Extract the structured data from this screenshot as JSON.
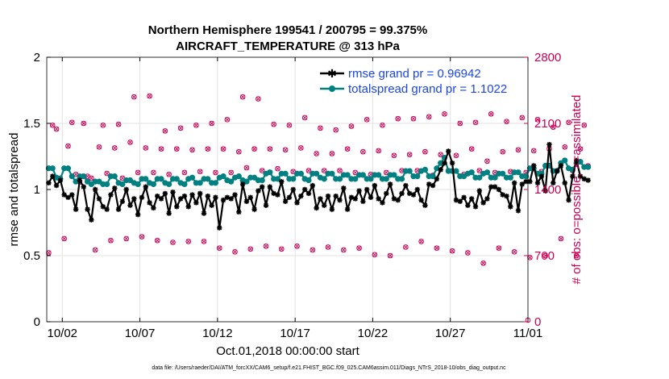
{
  "chart_data": {
    "type": "line",
    "title_line1": "Northern Hemisphere 199541 / 200795 = 99.375%",
    "title_line2": "AIRCRAFT_TEMPERATURE @ 313 hPa",
    "xlabel": "Oct.01,2018 00:00:00 start",
    "ylabel_left": "rmse and totalspread",
    "ylabel_right": "# of obs: o=possible; ×=assimilated",
    "xlim": [
      0,
      31
    ],
    "ylim_left": [
      0,
      2
    ],
    "ylim_right": [
      0,
      2800
    ],
    "x_ticks": [
      1,
      6,
      11,
      16,
      21,
      26,
      31
    ],
    "x_tick_labels": [
      "10/02",
      "10/07",
      "10/12",
      "10/17",
      "10/22",
      "10/27",
      "11/01"
    ],
    "y_ticks_left": [
      0,
      0.5,
      1,
      1.5,
      2
    ],
    "y_tick_labels_left": [
      "0",
      "0.5",
      "1",
      "1.5",
      "2"
    ],
    "y_ticks_right": [
      0,
      700,
      1400,
      2100,
      2800
    ],
    "y_tick_labels_right": [
      "0",
      "700",
      "1400",
      "2100",
      "2800"
    ],
    "x_step_days": 0.25,
    "x_start": 0.125,
    "series": [
      {
        "name": "rmse grand pr = 0.96942",
        "axis": "left",
        "color": "#000000",
        "values": [
          1.05,
          1.1,
          1.03,
          1.07,
          0.96,
          0.94,
          0.96,
          0.85,
          1.07,
          1.02,
          0.85,
          0.77,
          1.0,
          0.93,
          0.87,
          0.85,
          0.96,
          1.01,
          0.85,
          0.91,
          1.0,
          0.88,
          0.93,
          0.81,
          0.94,
          1.02,
          0.9,
          0.86,
          0.95,
          0.93,
          0.97,
          0.82,
          0.98,
          0.87,
          0.93,
          0.95,
          0.87,
          0.96,
          0.9,
          0.97,
          0.82,
          0.95,
          0.88,
          0.94,
          0.71,
          0.92,
          0.94,
          0.93,
          0.96,
          0.83,
          1.04,
          0.91,
          0.94,
          0.85,
          0.99,
          1.02,
          0.88,
          1.02,
          0.97,
          0.96,
          1.06,
          0.91,
          0.94,
          1.0,
          0.9,
          0.95,
          1.0,
          0.97,
          1.03,
          0.86,
          0.93,
          0.88,
          0.95,
          0.85,
          0.95,
          0.92,
          1.01,
          0.85,
          0.94,
          0.93,
          0.99,
          0.91,
          1.0,
          0.94,
          1.03,
          0.93,
          0.9,
          0.97,
          1.04,
          0.93,
          0.92,
          0.97,
          1.03,
          0.97,
          0.96,
          1.0,
          0.92,
          0.88,
          1.04,
          1.03,
          1.08,
          1.15,
          1.2,
          1.29,
          1.2,
          0.92,
          0.91,
          0.94,
          0.88,
          0.93,
          0.87,
          0.99,
          0.9,
          0.93,
          1.02,
          1.02,
          1.0,
          0.96,
          0.95,
          0.87,
          1.05,
          0.84,
          1.04,
          1.06,
          1.06,
          1.18,
          1.05,
          1.1,
          0.99,
          1.34,
          1.05,
          1.14,
          1.18,
          1.05,
          0.92,
          1.1,
          1.22,
          1.1,
          1.08,
          1.07
        ]
      },
      {
        "name": "totalspread grand pr = 1.1022",
        "axis": "left",
        "color": "#008080",
        "values": [
          1.16,
          1.16,
          1.09,
          1.08,
          1.16,
          1.16,
          1.1,
          1.06,
          1.1,
          1.1,
          1.06,
          1.04,
          1.06,
          1.06,
          1.04,
          1.04,
          1.1,
          1.1,
          1.05,
          1.04,
          1.07,
          1.07,
          1.05,
          1.04,
          1.08,
          1.08,
          1.05,
          1.04,
          1.08,
          1.08,
          1.05,
          1.04,
          1.08,
          1.08,
          1.05,
          1.04,
          1.08,
          1.09,
          1.05,
          1.05,
          1.08,
          1.08,
          1.05,
          1.05,
          1.09,
          1.1,
          1.07,
          1.06,
          1.09,
          1.1,
          1.07,
          1.06,
          1.09,
          1.09,
          1.07,
          1.07,
          1.12,
          1.13,
          1.08,
          1.08,
          1.12,
          1.12,
          1.08,
          1.08,
          1.12,
          1.12,
          1.08,
          1.07,
          1.12,
          1.12,
          1.09,
          1.08,
          1.12,
          1.12,
          1.08,
          1.08,
          1.11,
          1.11,
          1.08,
          1.08,
          1.11,
          1.11,
          1.08,
          1.08,
          1.11,
          1.11,
          1.08,
          1.08,
          1.11,
          1.11,
          1.08,
          1.08,
          1.14,
          1.14,
          1.1,
          1.1,
          1.14,
          1.15,
          1.1,
          1.1,
          1.16,
          1.2,
          1.24,
          1.14,
          1.14,
          1.14,
          1.1,
          1.1,
          1.12,
          1.13,
          1.09,
          1.09,
          1.12,
          1.13,
          1.09,
          1.09,
          1.12,
          1.12,
          1.09,
          1.09,
          1.13,
          1.13,
          1.1,
          1.1,
          1.16,
          1.16,
          1.12,
          1.12,
          1.18,
          1.18,
          1.14,
          1.14,
          1.2,
          1.22,
          1.16,
          1.15,
          1.2,
          1.21,
          1.17,
          1.17
        ]
      }
    ],
    "obs": {
      "axis": "right",
      "color": "#cc0055",
      "values": [
        730,
        2080,
        2040,
        1520,
        880,
        1860,
        2110,
        1560,
        1480,
        2100,
        1540,
        1520,
        760,
        1850,
        2080,
        1570,
        860,
        1840,
        2090,
        1520,
        880,
        1900,
        2380,
        1580,
        900,
        1840,
        2390,
        1580,
        860,
        1830,
        2020,
        1560,
        840,
        1830,
        2050,
        1580,
        850,
        1820,
        2080,
        1590,
        850,
        1830,
        2100,
        1580,
        780,
        1830,
        2140,
        1580,
        740,
        1800,
        2380,
        1630,
        770,
        1830,
        2360,
        1600,
        800,
        1830,
        2090,
        1620,
        770,
        1820,
        2080,
        1590,
        800,
        1840,
        2160,
        1600,
        760,
        1780,
        2050,
        1600,
        790,
        1780,
        2030,
        1600,
        760,
        1830,
        2070,
        1580,
        780,
        1800,
        2140,
        1560,
        710,
        1810,
        2080,
        1580,
        700,
        1760,
        2150,
        1600,
        790,
        1770,
        2150,
        1600,
        850,
        1800,
        2170,
        1550,
        780,
        1770,
        2200,
        1600,
        750,
        1760,
        2100,
        1560,
        730,
        1830,
        2110,
        1600,
        620,
        1700,
        2200,
        1580,
        780,
        1800,
        2120,
        1590,
        740,
        1820,
        2160,
        1580,
        680,
        1810,
        2140,
        1590,
        700,
        1830,
        2060,
        1600,
        880,
        1850,
        2110,
        1600,
        700,
        1830,
        2080,
        1650
      ]
    },
    "legend_position": "top-right",
    "grid": true
  },
  "footer_text": "data file: /Users/raeder/DAI/ATM_forcXX/CAM6_setup/f.e21.FHIST_BGC.f09_025.CAM6assim.011/Diags_NTrS_2018-10/obs_diag_output.nc"
}
